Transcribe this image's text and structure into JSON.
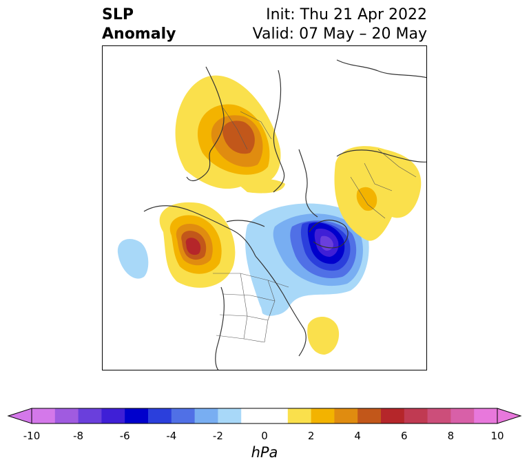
{
  "title": {
    "left_line1": "SLP",
    "left_line2": "Anomaly",
    "init": "Init: Thu 21 Apr 2022",
    "valid": "Valid: 07 May – 20 May"
  },
  "map": {
    "region": "North America / North Atlantic / Europe (polar stereographic)",
    "anomaly_centers": [
      {
        "name": "positive-anomaly-greenland-north-europe",
        "max_hpa": 5,
        "color": "#c2571a"
      },
      {
        "name": "positive-anomaly-gulf-of-alaska",
        "max_hpa": 6,
        "color": "#b5262a"
      },
      {
        "name": "negative-anomaly-hudson-bay-labrador",
        "min_hpa": -7,
        "color": "#0000cc"
      },
      {
        "name": "positive-anomaly-siberia",
        "max_hpa": 2,
        "color": "#f3b300"
      },
      {
        "name": "negative-anomaly-north-pacific",
        "min_hpa": -1,
        "color": "#a8d8f8"
      },
      {
        "name": "positive-anomaly-central-atlantic",
        "max_hpa": 1,
        "color": "#fae04c"
      }
    ]
  },
  "colorbar": {
    "unit": "hPa",
    "ticks": [
      "-10",
      "-8",
      "-6",
      "-4",
      "-2",
      "0",
      "2",
      "4",
      "6",
      "8",
      "10"
    ],
    "colors": [
      "#d478ea",
      "#a05be0",
      "#6a3fdc",
      "#3f1fd6",
      "#0000cc",
      "#2b3fdc",
      "#5070e6",
      "#78aef2",
      "#a8d8f8",
      "#ffffff",
      "#ffffff",
      "#fae04c",
      "#f3b300",
      "#e08c10",
      "#c2571a",
      "#b5262a",
      "#c03a52",
      "#cc4e7a",
      "#d860a8",
      "#e878dc"
    ],
    "extend_low_color": "#d478ea",
    "extend_high_color": "#e878dc"
  }
}
